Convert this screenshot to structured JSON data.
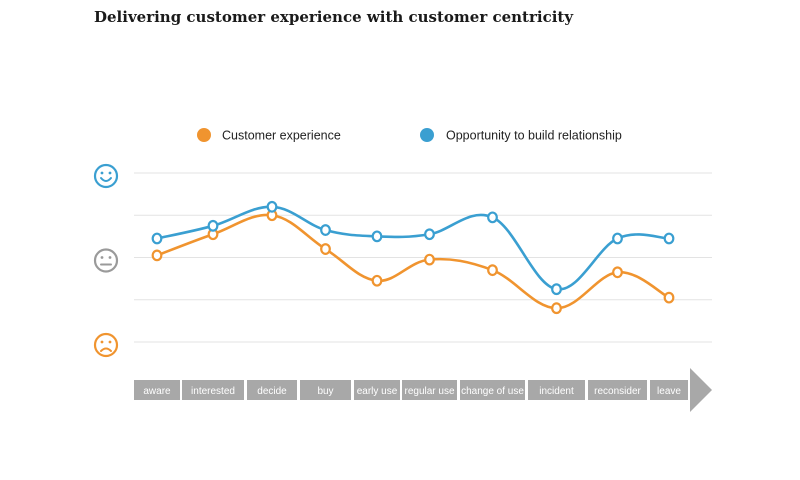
{
  "title": "Delivering customer experience with customer centricity",
  "colors": {
    "customer_experience": "#f0942f",
    "opportunity": "#3a9fd1",
    "neutral_face": "#9a9a9a",
    "grid": "#e3e3e3",
    "stage_bar": "#a8a8a8"
  },
  "faces": [
    {
      "name": "happy-face-icon",
      "level": 2
    },
    {
      "name": "neutral-face-icon",
      "level": 0
    },
    {
      "name": "sad-face-icon",
      "level": -2
    }
  ],
  "chart_data": {
    "type": "line",
    "title": "Delivering customer experience with customer centricity",
    "categories": [
      "aware",
      "interested",
      "decide",
      "buy",
      "early use",
      "regular use",
      "change of use",
      "incident",
      "reconsider",
      "leave"
    ],
    "ylim": [
      -2,
      2
    ],
    "grid": true,
    "legend_placement": "top",
    "series": [
      {
        "name": "Customer experience",
        "color": "#f0942f",
        "values": [
          0.05,
          0.55,
          1.0,
          0.2,
          -0.55,
          -0.05,
          -0.3,
          -1.2,
          -0.35,
          -0.95
        ]
      },
      {
        "name": "Opportunity to build relationship",
        "color": "#3a9fd1",
        "values": [
          0.45,
          0.75,
          1.2,
          0.65,
          0.5,
          0.55,
          0.95,
          -0.75,
          0.45,
          0.45
        ]
      }
    ]
  }
}
